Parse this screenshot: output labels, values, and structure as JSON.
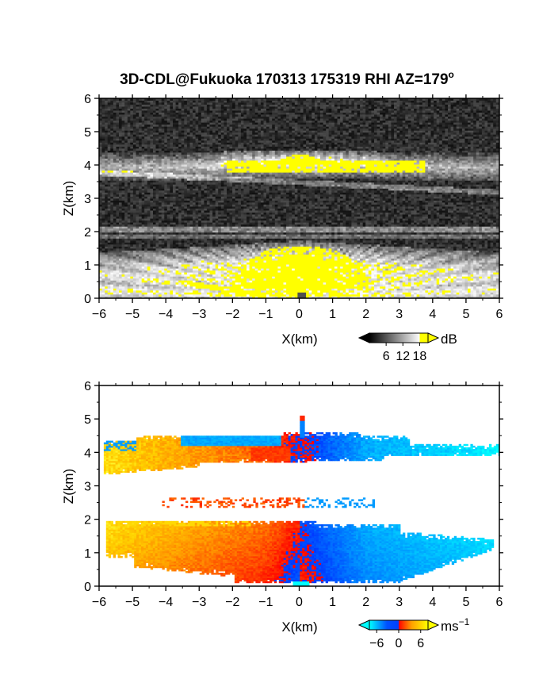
{
  "title": "3D-CDL@Fukuoka 170313 175319 RHI AZ=179",
  "title_superscript": "o",
  "chart_data": [
    {
      "type": "heatmap",
      "panel": "reflectivity",
      "xlabel": "X(km)",
      "ylabel": "Z(km)",
      "xlim": [
        -6,
        6
      ],
      "ylim": [
        0,
        6
      ],
      "x_ticks": [
        -6,
        -5,
        -4,
        -3,
        -2,
        -1,
        0,
        1,
        2,
        3,
        4,
        5,
        6
      ],
      "y_ticks": [
        0,
        1,
        2,
        3,
        4,
        5,
        6
      ],
      "x_tick_labels": [
        "−6",
        "−5",
        "−4",
        "−3",
        "−2",
        "−1",
        "0",
        "1",
        "2",
        "3",
        "4",
        "5",
        "6"
      ],
      "y_tick_labels": [
        "0",
        "1",
        "2",
        "3",
        "4",
        "5",
        "6"
      ],
      "colorbar": {
        "unit": "dB",
        "ticks": [
          6,
          12,
          18
        ],
        "tick_labels": [
          "6",
          "12",
          "18"
        ],
        "range": [
          0,
          21
        ],
        "colors": [
          "#000000",
          "#ffffff",
          "#ffff00"
        ]
      },
      "saturation_color": "#ffff00",
      "layers": [
        {
          "kind": "upper-layer",
          "z_range": [
            3.6,
            4.4
          ],
          "x_range": [
            -6,
            6
          ]
        },
        {
          "kind": "lower-layer",
          "z_range": [
            0,
            1.9
          ],
          "x_range": [
            -6,
            6
          ]
        },
        {
          "kind": "upper-saturation",
          "z_range": [
            3.7,
            4.2
          ],
          "x_range": [
            -2.2,
            3.7
          ]
        },
        {
          "kind": "lower-saturation",
          "z_range": [
            0.3,
            1.5
          ],
          "x_range": [
            -1.8,
            2.0
          ]
        }
      ]
    },
    {
      "type": "heatmap",
      "panel": "doppler-velocity",
      "xlabel": "X(km)",
      "ylabel": "Z(km)",
      "xlim": [
        -6,
        6
      ],
      "ylim": [
        0,
        6
      ],
      "x_ticks": [
        -6,
        -5,
        -4,
        -3,
        -2,
        -1,
        0,
        1,
        2,
        3,
        4,
        5,
        6
      ],
      "y_ticks": [
        0,
        1,
        2,
        3,
        4,
        5,
        6
      ],
      "x_tick_labels": [
        "−6",
        "−5",
        "−4",
        "−3",
        "−2",
        "−1",
        "0",
        "1",
        "2",
        "3",
        "4",
        "5",
        "6"
      ],
      "y_tick_labels": [
        "0",
        "1",
        "2",
        "3",
        "4",
        "5",
        "6"
      ],
      "colorbar": {
        "unit": "ms",
        "unit_superscript": "−1",
        "ticks": [
          -6,
          0,
          6
        ],
        "tick_labels": [
          "−6",
          "0",
          "6"
        ],
        "range": [
          -8,
          8
        ],
        "colors": [
          "#00ffff",
          "#0050ff",
          "#ff0000",
          "#ffa000",
          "#ffff00"
        ]
      },
      "layers": [
        {
          "kind": "upper-layer",
          "z_range": [
            3.3,
            4.6
          ],
          "x_range": [
            -5.9,
            6.0
          ]
        },
        {
          "kind": "lower-layer",
          "z_range": [
            0.05,
            1.95
          ],
          "x_range": [
            -5.8,
            5.8
          ]
        },
        {
          "kind": "mid-streak",
          "z_range": [
            2.3,
            2.6
          ],
          "x_range": [
            -4.2,
            2.3
          ]
        }
      ],
      "velocity_profile": {
        "x": [
          -6,
          -1,
          -0.2,
          0.2,
          2,
          6
        ],
        "v": [
          6,
          2,
          0,
          0,
          -4,
          -6.5
        ]
      }
    }
  ]
}
